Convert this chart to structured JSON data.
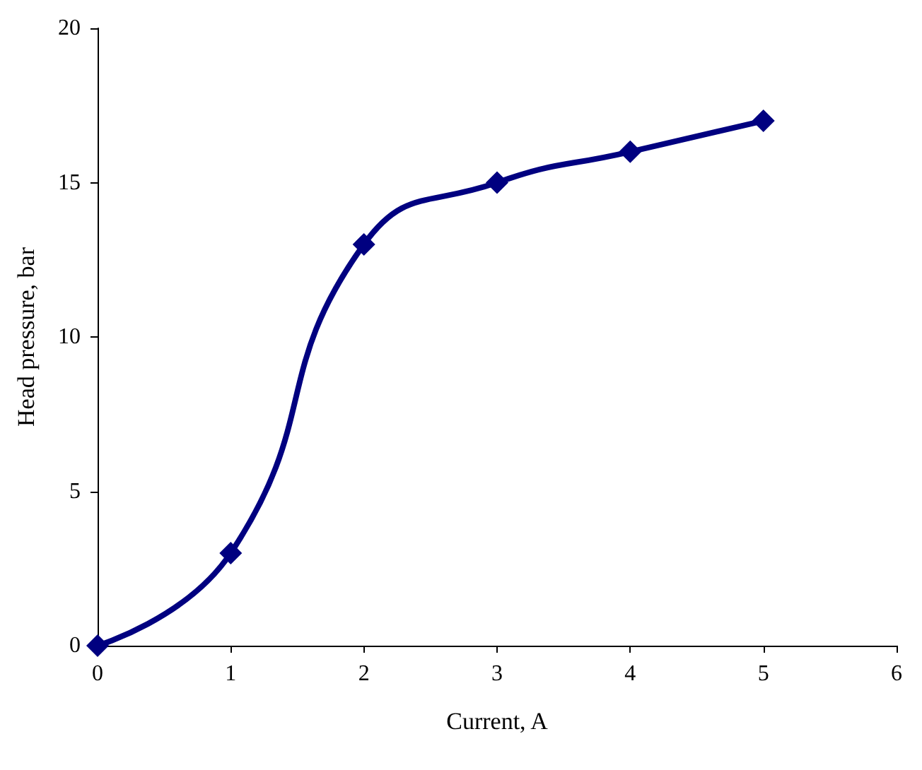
{
  "chart_data": {
    "type": "line",
    "xlabel": "Current, A",
    "ylabel": "Head pressure, bar",
    "x": [
      0,
      1,
      2,
      3,
      4,
      5
    ],
    "series": [
      {
        "color": "#000080",
        "values": [
          0,
          3,
          13,
          15,
          16,
          17
        ]
      }
    ],
    "xlim": [
      0,
      6
    ],
    "xticks": [
      0,
      1,
      2,
      3,
      4,
      5,
      6
    ],
    "ylim": [
      0,
      20
    ],
    "yticks": [
      0,
      5,
      10,
      15,
      20
    ],
    "marker": "diamond",
    "line_style": "solid"
  }
}
